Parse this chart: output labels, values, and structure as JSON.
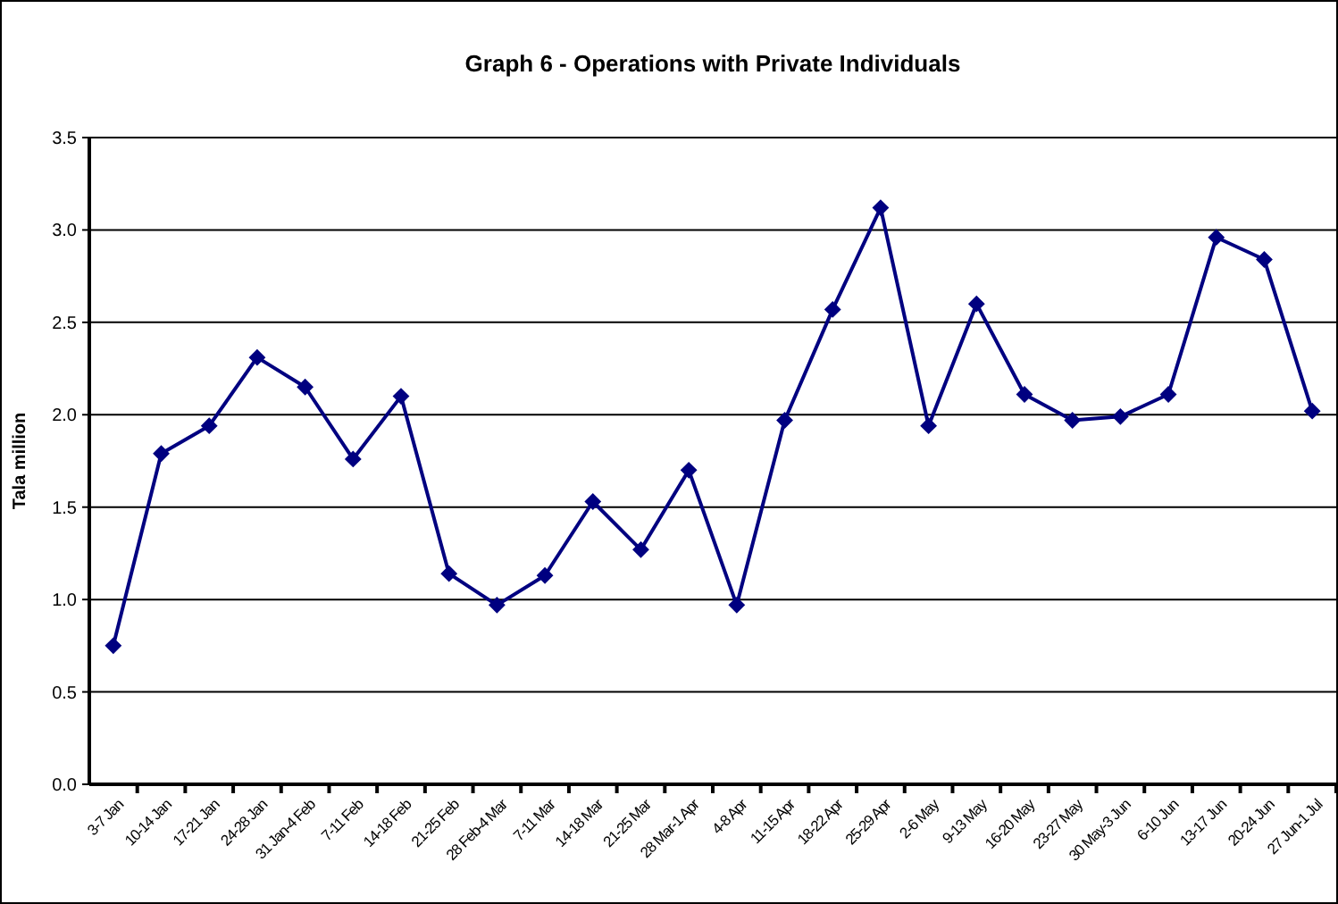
{
  "chart_data": {
    "type": "line",
    "title": "Graph 6 - Operations with Private Individuals",
    "ylabel": "Tala million",
    "categories": [
      "3-7 Jan",
      "10-14 Jan",
      "17-21 Jan",
      "24-28 Jan",
      "31 Jan-4 Feb",
      "7-11 Feb",
      "14-18 Feb",
      "21-25 Feb",
      "28 Feb-4 Mar",
      "7-11 Mar",
      "14-18 Mar",
      "21-25 Mar",
      "28 Mar-1 Apr",
      "4-8 Apr",
      "11-15 Apr",
      "18-22 Apr",
      "25-29 Apr",
      "2-6 May",
      "9-13 May",
      "16-20 May",
      "23-27 May",
      "30 May-3 Jun",
      "6-10 Jun",
      "13-17 Jun",
      "20-24 Jun",
      "27 Jun-1 Jul"
    ],
    "series": [
      {
        "color": "#000080",
        "values": [
          0.75,
          1.79,
          1.94,
          2.31,
          2.15,
          1.76,
          2.1,
          1.14,
          0.97,
          1.13,
          1.53,
          1.27,
          1.7,
          0.97,
          1.97,
          2.57,
          3.12,
          1.94,
          2.6,
          2.11,
          1.97,
          1.99,
          2.11,
          2.96,
          2.84,
          2.02
        ]
      }
    ],
    "ylim": [
      0,
      3.5
    ],
    "yticks": [
      {
        "value": 0,
        "label": "0.0"
      },
      {
        "value": 0.5,
        "label": "0.5"
      },
      {
        "value": 1,
        "label": "1.0"
      },
      {
        "value": 1.5,
        "label": "1.5"
      },
      {
        "value": 2,
        "label": "2.0"
      },
      {
        "value": 2.5,
        "label": "2.5"
      },
      {
        "value": 3,
        "label": "3.0"
      },
      {
        "value": 3.5,
        "label": "3.5"
      }
    ],
    "grid": "y",
    "marker": "diamond",
    "line_style": "solid"
  }
}
